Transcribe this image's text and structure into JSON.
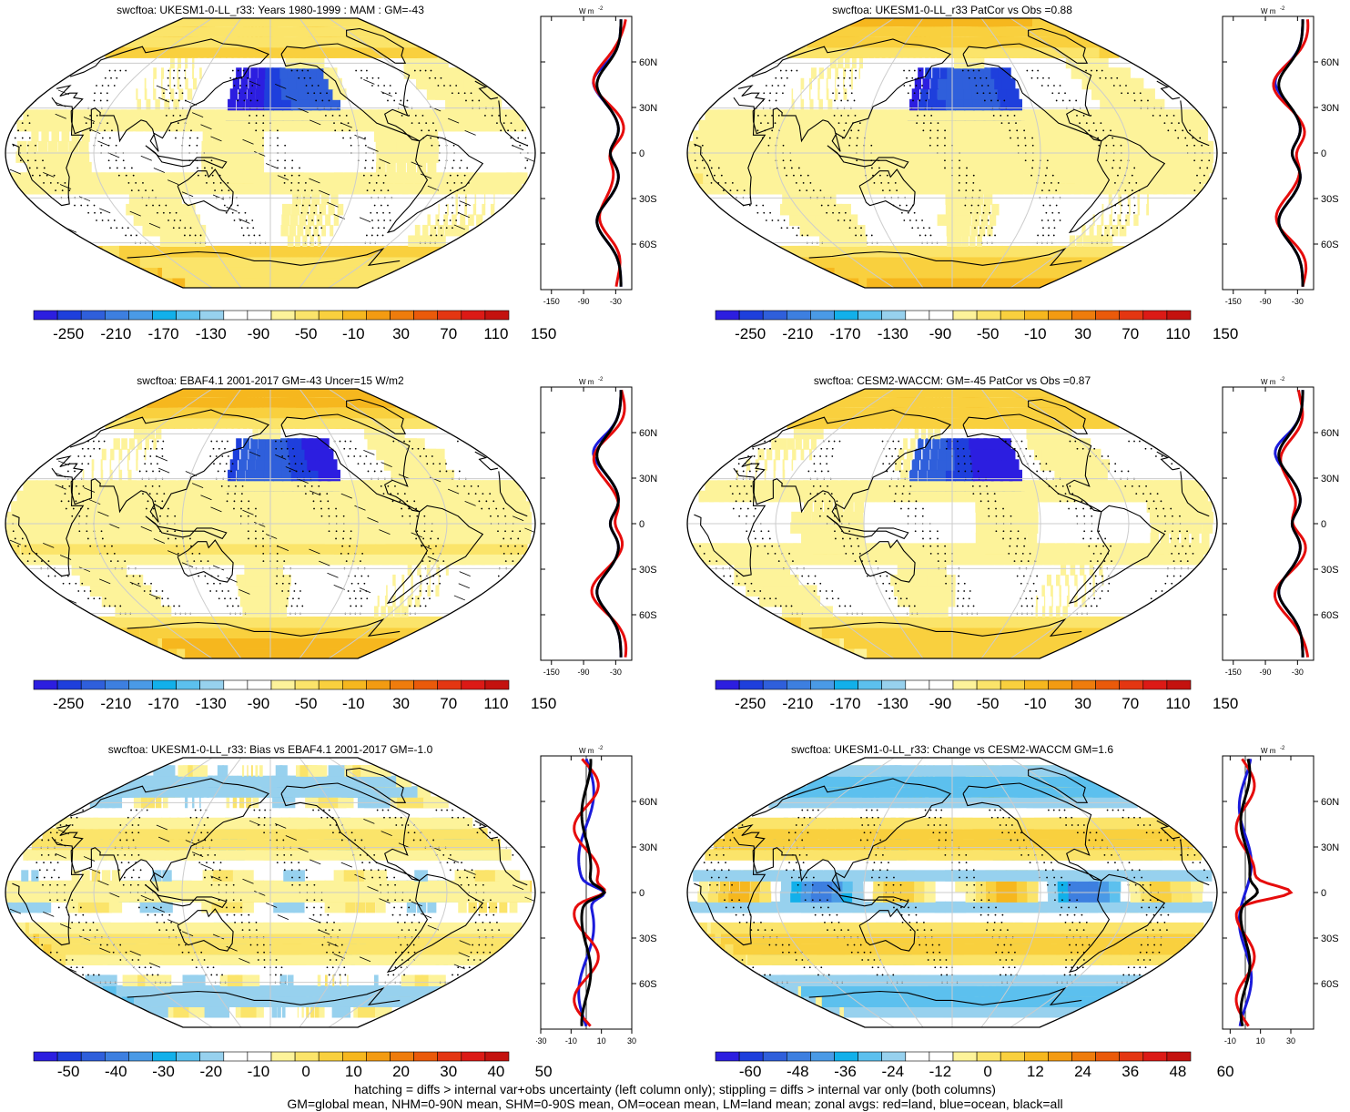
{
  "panels": [
    {
      "id": "ukesm-mean",
      "title": "swcftoa: UKESM1-0-LL_r33: Years 1980-1999 : MAM : GM=-43",
      "colorbar_labels": [
        "-250",
        "-210",
        "-170",
        "-130",
        "-90",
        "-50",
        "-10",
        "30",
        "70",
        "110",
        "150"
      ],
      "zonal_ticks": [
        "-150",
        "-90",
        "-30"
      ],
      "zonal_range": [
        -170,
        0
      ],
      "hatching": true,
      "palette": "full"
    },
    {
      "id": "ukesm-patcor",
      "title": "swcftoa: UKESM1-0-LL_r33 PatCor vs Obs =0.88",
      "colorbar_labels": [
        "-250",
        "-210",
        "-170",
        "-130",
        "-90",
        "-50",
        "-10",
        "30",
        "70",
        "110",
        "150"
      ],
      "zonal_ticks": [
        "-150",
        "-90",
        "-30"
      ],
      "zonal_range": [
        -170,
        0
      ],
      "hatching": false,
      "palette": "full"
    },
    {
      "id": "ebaf-obs",
      "title": "swcftoa: EBAF4.1 2001-2017 GM=-43 Uncer=15 W/m2",
      "colorbar_labels": [
        "-250",
        "-210",
        "-170",
        "-130",
        "-90",
        "-50",
        "-10",
        "30",
        "70",
        "110",
        "150"
      ],
      "zonal_ticks": [
        "-150",
        "-90",
        "-30"
      ],
      "zonal_range": [
        -170,
        0
      ],
      "hatching": true,
      "palette": "full"
    },
    {
      "id": "cesm2-waccm",
      "title": "swcftoa: CESM2-WACCM: GM=-45 PatCor vs Obs =0.87",
      "colorbar_labels": [
        "-250",
        "-210",
        "-170",
        "-130",
        "-90",
        "-50",
        "-10",
        "30",
        "70",
        "110",
        "150"
      ],
      "zonal_ticks": [
        "-150",
        "-90",
        "-30"
      ],
      "zonal_range": [
        -170,
        0
      ],
      "hatching": false,
      "palette": "full"
    },
    {
      "id": "bias",
      "title": "swcftoa: UKESM1-0-LL_r33: Bias vs EBAF4.1 2001-2017 GM=-1.0",
      "colorbar_labels": [
        "-50",
        "-40",
        "-30",
        "-20",
        "-10",
        "0",
        "10",
        "20",
        "30",
        "40",
        "50"
      ],
      "zonal_ticks": [
        "-30",
        "-10",
        "10",
        "30"
      ],
      "zonal_range": [
        -30,
        30
      ],
      "hatching": true,
      "palette": "diff"
    },
    {
      "id": "change",
      "title": "swcftoa: UKESM1-0-LL_r33: Change vs CESM2-WACCM GM=1.6",
      "colorbar_labels": [
        "-60",
        "-48",
        "-36",
        "-24",
        "-12",
        "0",
        "12",
        "24",
        "36",
        "48",
        "60"
      ],
      "zonal_ticks": [
        "-10",
        "10",
        "30"
      ],
      "zonal_range": [
        -15,
        45
      ],
      "hatching": false,
      "palette": "diff"
    }
  ],
  "zonal_unit": "W m",
  "zonal_unit_exp": "-2",
  "lat_labels": [
    "60N",
    "30N",
    "0",
    "30S",
    "60S"
  ],
  "colors": {
    "full": [
      "#2c1ee0",
      "#1e3fdc",
      "#2f5fdb",
      "#3d7fe0",
      "#4a9ae6",
      "#12b0ea",
      "#5cc0ee",
      "#97d1ee",
      "#ffffff",
      "#ffffff",
      "#fdf39a",
      "#fbe46a",
      "#f9d03e",
      "#f6b71e",
      "#f39b12",
      "#ef7c0c",
      "#ea5a0a",
      "#e43612",
      "#dc1a16",
      "#c4120f"
    ],
    "diff": [
      "#2c1ee0",
      "#1e3fdc",
      "#2f5fdb",
      "#3d7fe0",
      "#4a9ae6",
      "#12b0ea",
      "#5cc0ee",
      "#97d1ee",
      "#ffffff",
      "#ffffff",
      "#fdf39a",
      "#fbe46a",
      "#f9d03e",
      "#f6b71e",
      "#f39b12",
      "#ef7c0c",
      "#ea5a0a",
      "#e43612",
      "#dc1a16",
      "#c4120f"
    ],
    "land": "#e60c0c",
    "ocean": "#1a1adb",
    "all": "#000000"
  },
  "footer": {
    "line1": "hatching = diffs > internal var+obs uncertainty (left column only); stippling = diffs > internal var only (both columns)",
    "line2": "GM=global mean, NHM=0-90N mean, SHM=0-90S mean, OM=ocean mean, LM=land mean; zonal avgs: red=land, blue=ocean, black=all"
  }
}
